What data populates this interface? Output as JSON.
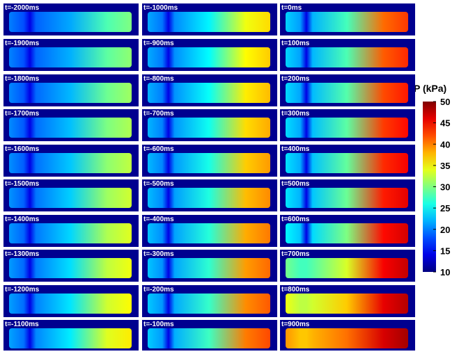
{
  "panels": [
    "t=-2000ms",
    "t=-1900ms",
    "t=-1800ms",
    "t=-1700ms",
    "t=-1600ms",
    "t=-1500ms",
    "t=-1400ms",
    "t=-1300ms",
    "t=-1200ms",
    "t=-1100ms",
    "t=-1000ms",
    "t=-900ms",
    "t=-800ms",
    "t=-700ms",
    "t=-600ms",
    "t=-500ms",
    "t=-400ms",
    "t=-300ms",
    "t=-200ms",
    "t=-100ms",
    "t=0ms",
    "t=100ms",
    "t=200ms",
    "t=300ms",
    "t=400ms",
    "t=500ms",
    "t=600ms",
    "t=700ms",
    "t=800ms",
    "t=900ms"
  ],
  "colorbar": {
    "title": "P (kPa)",
    "lim": [
      10,
      50
    ],
    "ticks": [
      10,
      15,
      20,
      25,
      30,
      35,
      40,
      45,
      50
    ]
  }
}
